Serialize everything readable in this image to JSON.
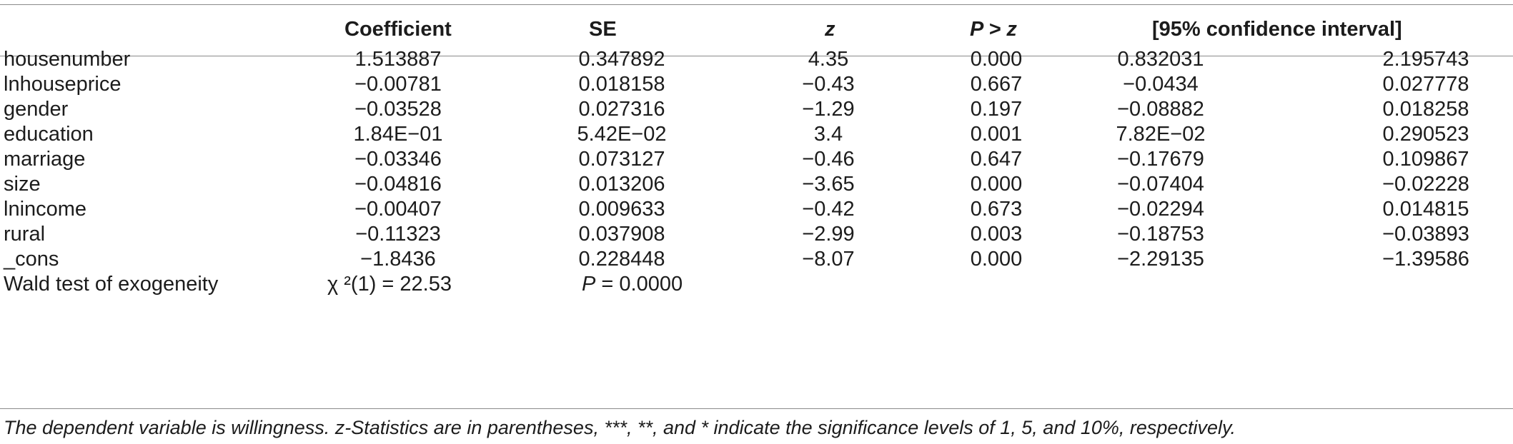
{
  "table": {
    "headers": {
      "coefficient": "Coefficient",
      "se": "SE",
      "z": "z",
      "p": "P > z",
      "ci": "[95% confidence interval]"
    },
    "rows": [
      {
        "label": "housenumber",
        "coef": "1.513887",
        "se": "0.347892",
        "z": "4.35",
        "p": "0.000",
        "ci_low": "0.832031",
        "ci_high": "2.195743"
      },
      {
        "label": "lnhouseprice",
        "coef": "−0.00781",
        "se": "0.018158",
        "z": "−0.43",
        "p": "0.667",
        "ci_low": "−0.0434",
        "ci_high": "0.027778"
      },
      {
        "label": "gender",
        "coef": "−0.03528",
        "se": "0.027316",
        "z": "−1.29",
        "p": "0.197",
        "ci_low": "−0.08882",
        "ci_high": "0.018258"
      },
      {
        "label": "education",
        "coef": "1.84E−01",
        "se": "5.42E−02",
        "z": "3.4",
        "p": "0.001",
        "ci_low": "7.82E−02",
        "ci_high": "0.290523"
      },
      {
        "label": "marriage",
        "coef": "−0.03346",
        "se": "0.073127",
        "z": "−0.46",
        "p": "0.647",
        "ci_low": "−0.17679",
        "ci_high": "0.109867"
      },
      {
        "label": "size",
        "coef": "−0.04816",
        "se": "0.013206",
        "z": "−3.65",
        "p": "0.000",
        "ci_low": "−0.07404",
        "ci_high": "−0.02228"
      },
      {
        "label": "lnincome",
        "coef": "−0.00407",
        "se": "0.009633",
        "z": "−0.42",
        "p": "0.673",
        "ci_low": "−0.02294",
        "ci_high": "0.014815"
      },
      {
        "label": "rural",
        "coef": "−0.11323",
        "se": "0.037908",
        "z": "−2.99",
        "p": "0.003",
        "ci_low": "−0.18753",
        "ci_high": "−0.03893"
      },
      {
        "label": "_cons",
        "coef": "−1.8436",
        "se": "0.228448",
        "z": "−8.07",
        "p": "0.000",
        "ci_low": "−2.29135",
        "ci_high": "−1.39586"
      }
    ],
    "wald": {
      "label": "Wald test of exogeneity",
      "chi": "χ ²(1) = 22.53",
      "p_prefix": "P",
      "p_rest": " = 0.0000"
    }
  },
  "footnote": "The dependent variable is willingness. z-Statistics are in parentheses, ***, **, and * indicate the significance levels of 1, 5, and 10%, respectively."
}
